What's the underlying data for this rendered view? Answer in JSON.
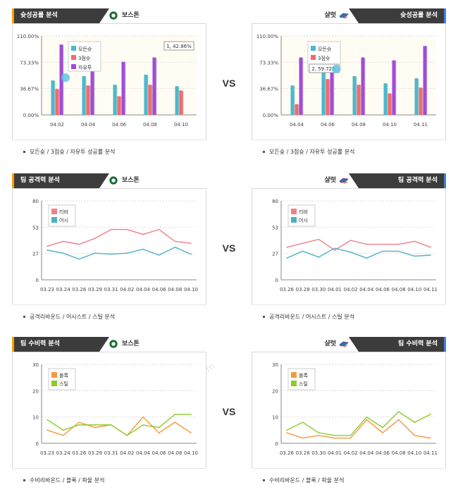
{
  "vs_label": "VS",
  "watermark_text": [
    "토토박사",
    "totobaksa.com"
  ],
  "colors": {
    "tab_bg": "#3c3c3c",
    "accent_left": "#ff9c00",
    "accent_right": "#3f7fd8",
    "success_all": "#4cb8cc",
    "success_3pt": "#f26b6b",
    "success_ft": "#a24bd8",
    "rebound": "#f07f8a",
    "assist": "#4eb0c8",
    "block": "#f59a3a",
    "steal": "#8ccc2a"
  },
  "panels": [
    {
      "id": "success-left",
      "header_title": "슛성공률 분석",
      "team_name": "보스톤",
      "team_icon": "celtics-logo-icon",
      "side": "left",
      "caption": "모든슛 / 3점슛 / 자유투 성공률 분석",
      "chart_data": {
        "type": "bar",
        "categories": [
          "04.02",
          "04.04",
          "04.06",
          "04.08",
          "04.10"
        ],
        "y_tick_labels": [
          "0.00%",
          "36.67%",
          "73.33%",
          "110.00%"
        ],
        "ylim": [
          0,
          110
        ],
        "series": [
          {
            "name": "모든슛",
            "values": [
              48,
              54,
              42,
              56,
              40
            ]
          },
          {
            "name": "3점슛",
            "values": [
              36,
              41,
              26,
              42,
              34
            ]
          },
          {
            "name": "자유투",
            "values": [
              98,
              90,
              74,
              80,
              0
            ]
          }
        ],
        "tooltip_text": "1, 42.86%"
      }
    },
    {
      "id": "success-right",
      "header_title": "슛성공률 분석",
      "team_name": "샬럿",
      "team_icon": "hornets-logo-icon",
      "side": "right",
      "caption": "모든슛 / 3점슛 / 자유투 성공률 분석",
      "chart_data": {
        "type": "bar",
        "categories": [
          "04.04",
          "04.06",
          "04.08",
          "04.10",
          "04.11"
        ],
        "y_tick_labels": [
          "0.00%",
          "36.67%",
          "73.33%",
          "110.00%"
        ],
        "ylim": [
          0,
          110
        ],
        "series": [
          {
            "name": "모든슛",
            "values": [
              41,
              60,
              54,
              44,
              51
            ]
          },
          {
            "name": "3점슛",
            "values": [
              15,
              50,
              42,
              30,
              38
            ]
          },
          {
            "name": "자유투",
            "values": [
              80,
              100,
              80,
              76,
              96
            ]
          }
        ],
        "tooltip_text": "2, 59.72%"
      }
    },
    {
      "id": "offense-left",
      "header_title": "팀 공격력 분석",
      "team_name": "보스톤",
      "team_icon": "celtics-logo-icon",
      "side": "left",
      "caption": "공격리바운드 / 어시스트 / 스틸 분석",
      "chart_data": {
        "type": "line",
        "categories": [
          "03.23",
          "03.24",
          "03.26",
          "03.29",
          "03.31",
          "04.02",
          "04.04",
          "04.06",
          "04.08",
          "04.10"
        ],
        "y_tick_labels": [
          "0",
          "27",
          "53",
          "80"
        ],
        "ylim": [
          0,
          80
        ],
        "series": [
          {
            "name": "리바",
            "values": [
              34,
              39,
              36,
              42,
              51,
              51,
              46,
              51,
              39,
              37
            ]
          },
          {
            "name": "어시",
            "values": [
              30,
              27,
              21,
              27,
              26,
              27,
              31,
              25,
              33,
              26
            ]
          }
        ]
      }
    },
    {
      "id": "offense-right",
      "header_title": "팀 공격력 분석",
      "team_name": "샬럿",
      "team_icon": "hornets-logo-icon",
      "side": "right",
      "caption": "공격리바운드 / 어시스트 / 스틸 분석",
      "chart_data": {
        "type": "line",
        "categories": [
          "03.26",
          "03.28",
          "03.30",
          "04.01",
          "04.02",
          "04.04",
          "04.06",
          "04.08",
          "04.10",
          "04.11"
        ],
        "y_tick_labels": [
          "0",
          "27",
          "53",
          "80"
        ],
        "ylim": [
          0,
          80
        ],
        "series": [
          {
            "name": "리바",
            "values": [
              33,
              37,
              41,
              30,
              40,
              36,
              36,
              36,
              39,
              33
            ]
          },
          {
            "name": "어시",
            "values": [
              22,
              29,
              23,
              32,
              28,
              22,
              29,
              29,
              24,
              25
            ]
          }
        ]
      }
    },
    {
      "id": "defense-left",
      "header_title": "팀 수비력 분석",
      "team_name": "보스톤",
      "team_icon": "celtics-logo-icon",
      "side": "left",
      "caption": "수비리바운드 / 블록 / 파울 분석",
      "chart_data": {
        "type": "line",
        "categories": [
          "03.23",
          "03.24",
          "03.26",
          "03.29",
          "03.31",
          "04.02",
          "04.04",
          "04.06",
          "04.08",
          "04.10"
        ],
        "y_tick_labels": [
          "0",
          "10",
          "20",
          "30"
        ],
        "ylim": [
          0,
          30
        ],
        "series": [
          {
            "name": "블록",
            "values": [
              5,
              3,
              8,
              6,
              7,
              3,
              10,
              4,
              8,
              4
            ]
          },
          {
            "name": "스틸",
            "values": [
              9,
              5,
              7,
              7,
              7,
              3,
              7,
              6,
              11,
              11
            ]
          }
        ]
      }
    },
    {
      "id": "defense-right",
      "header_title": "팀 수비력 분석",
      "team_name": "샬럿",
      "team_icon": "hornets-logo-icon",
      "side": "right",
      "caption": "수비리바운드 / 블록 / 파울 분석",
      "chart_data": {
        "type": "line",
        "categories": [
          "03.26",
          "03.28",
          "03.30",
          "04.01",
          "04.02",
          "04.04",
          "04.06",
          "04.08",
          "04.10",
          "04.11"
        ],
        "y_tick_labels": [
          "0",
          "10",
          "20",
          "30"
        ],
        "ylim": [
          0,
          30
        ],
        "series": [
          {
            "name": "블록",
            "values": [
              4,
              2,
              3,
              2,
              2,
              9,
              4,
              9,
              3,
              2
            ]
          },
          {
            "name": "스틸",
            "values": [
              5,
              8,
              4,
              3,
              3,
              10,
              6,
              12,
              8,
              11
            ]
          }
        ]
      }
    }
  ]
}
